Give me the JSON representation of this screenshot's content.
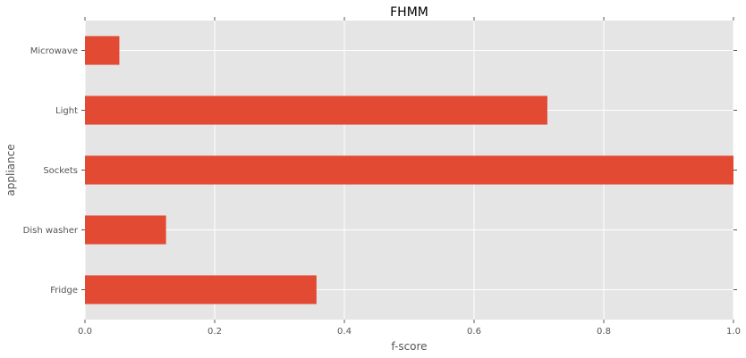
{
  "chart_data": {
    "type": "bar",
    "orientation": "horizontal",
    "title": "FHMM",
    "xlabel": "f-score",
    "ylabel": "appliance",
    "categories": [
      "Microwave",
      "Light",
      "Sockets",
      "Dish washer",
      "Fridge"
    ],
    "values": [
      0.053,
      0.713,
      1.0,
      0.125,
      0.357
    ],
    "xlim": [
      0,
      1.0
    ],
    "xticks": [
      "0.0",
      "0.2",
      "0.4",
      "0.6",
      "0.8",
      "1.0"
    ],
    "grid": true,
    "bar_color": "#E24A33",
    "background_color": "#E5E5E5",
    "grid_color": "#FFFFFF"
  }
}
